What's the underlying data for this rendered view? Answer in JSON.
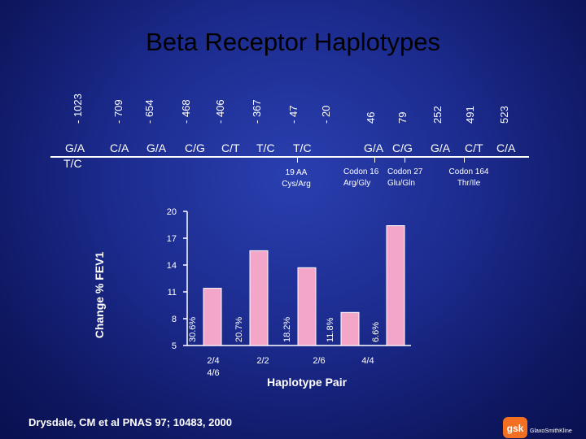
{
  "slide": {
    "title": "Beta Receptor Haplotypes",
    "positions": [
      "- 1023",
      "- 709",
      "- 654",
      "- 468",
      "- 406",
      "- 367",
      "- 47",
      "- 20",
      "46",
      "79",
      "252",
      "491",
      "523"
    ],
    "genotypes": [
      "G/A",
      "T/C",
      "C/A",
      "G/A",
      "C/G",
      "C/T",
      "T/C",
      "T/C",
      "G/A",
      "C/G",
      "G/A",
      "C/T",
      "C/A"
    ],
    "codon_notes": [
      {
        "line1": "19 AA",
        "line2": "Cys/Arg"
      },
      {
        "line1": "Codon 16",
        "line2": "Arg/Gly"
      },
      {
        "line1": "Codon 27",
        "line2": "Glu/Gln"
      },
      {
        "line1": "Codon 164",
        "line2": "Thr/Ile"
      }
    ],
    "citation": "Drysdale, CM et al PNAS 97; 10483, 2000",
    "logo_text": "GlaxoSmithKline",
    "logo_mark": "gsk"
  },
  "chart_data": {
    "type": "bar",
    "title": "",
    "xlabel": "Haplotype Pair",
    "ylabel": "Change % FEV1",
    "ylim": [
      5,
      20
    ],
    "yticks": [
      5,
      8,
      11,
      14,
      17,
      20
    ],
    "categories": [
      "2/4\n4/6",
      "2/2",
      "2/6",
      "4/4",
      ""
    ],
    "series": [
      {
        "values": [
          11.4,
          15.6,
          13.7,
          8.7,
          18.4
        ],
        "bar_labels": [
          "30.6%",
          "20.7%",
          "18.2%",
          "11.8%",
          "6.6%"
        ]
      }
    ],
    "colors": {
      "bar": "#f4a6c8",
      "axis": "#ffffff"
    },
    "grid": false,
    "legend": "none"
  }
}
